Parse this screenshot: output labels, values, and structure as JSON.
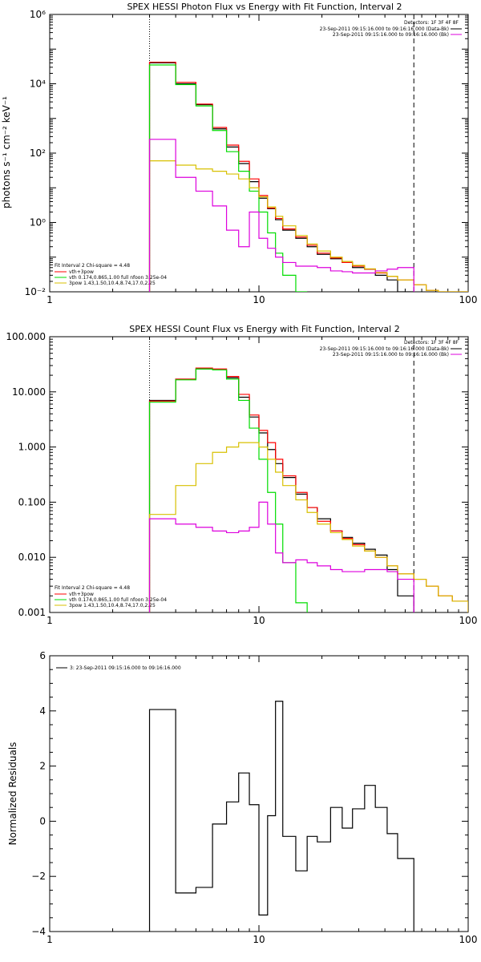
{
  "colors": {
    "black": "#000000",
    "red": "#ff0000",
    "green": "#00dd00",
    "yellow": "#d8c000",
    "magenta": "#dd00dd"
  },
  "chart_data": [
    {
      "id": "photon",
      "type": "line",
      "title": "SPEX HESSI Photon Flux vs Energy with Fit Function, Interval 2",
      "xlabel": "",
      "ylabel": "photons s⁻¹ cm⁻² keV⁻¹",
      "xscale": "log",
      "yscale": "log",
      "xlim": [
        1,
        100
      ],
      "ylim": [
        0.01,
        1000000
      ],
      "x_ticks": [
        1,
        10,
        100
      ],
      "x_tick_labels": [
        "1",
        "10",
        "100"
      ],
      "y_ticks": [
        0.01,
        1,
        100,
        10000,
        1000000
      ],
      "y_tick_labels": [
        "10⁻²",
        "10⁰",
        "10²",
        "10⁴",
        "10⁶"
      ],
      "vlines": [
        {
          "x": 3.0,
          "style": "dotted"
        },
        {
          "x": 55.0,
          "style": "dashed"
        }
      ],
      "legend_right": {
        "header": "Detectors: 1F 3F 4F 8F",
        "entries": [
          {
            "text": "23-Sep-2011 09:15:16.000 to 09:16:16.000 (Data-Bk)",
            "color_key": "black"
          },
          {
            "text": "23-Sep-2011 09:15:16.000 to 09:16:16.000 (Bk)",
            "color_key": "magenta"
          }
        ]
      },
      "legend_left": {
        "header": "Fit Interval 2   Chi-square = 4.48",
        "entries": [
          {
            "text": "vth+3pow",
            "color_key": "red"
          },
          {
            "text": "vth 0.174,0.865,1.00  full nfoon 3.25e-04",
            "color_key": "green"
          },
          {
            "text": "3pow 1.43,1.50,10.4,8.74,17.0,2.25",
            "color_key": "yellow"
          }
        ]
      },
      "edges": [
        3,
        4,
        5,
        6,
        7,
        8,
        9,
        10,
        11,
        12,
        13,
        15,
        17,
        19,
        22,
        25,
        28,
        32,
        36,
        41,
        46,
        55,
        63,
        72,
        84,
        100
      ],
      "series": [
        {
          "name": "Data-Bk",
          "color_key": "black",
          "values": [
            40000,
            10000,
            2500,
            500,
            150,
            50,
            15,
            5,
            2.5,
            1.2,
            0.6,
            0.35,
            0.2,
            0.12,
            0.09,
            0.07,
            0.05,
            0.045,
            0.03,
            0.022,
            0.003
          ]
        },
        {
          "name": "vth+3pow",
          "color_key": "red",
          "values": [
            42000,
            11000,
            2600,
            550,
            170,
            58,
            18,
            6,
            2.6,
            1.3,
            0.65,
            0.38,
            0.22,
            0.13,
            0.095,
            0.07,
            0.055,
            0.045,
            0.035,
            0.028,
            0.022,
            0.016,
            0.011,
            0.008,
            0.006
          ]
        },
        {
          "name": "vth",
          "color_key": "green",
          "values": [
            35000,
            9500,
            2300,
            450,
            110,
            30,
            8,
            2,
            0.5,
            0.13,
            0.03,
            0.005
          ]
        },
        {
          "name": "3pow",
          "color_key": "yellow",
          "values": [
            60,
            45,
            35,
            30,
            25,
            18,
            10,
            5.5,
            2.8,
            1.5,
            0.8,
            0.42,
            0.24,
            0.15,
            0.1,
            0.075,
            0.058,
            0.046,
            0.036,
            0.028,
            0.022,
            0.016,
            0.011,
            0.008,
            0.006
          ]
        },
        {
          "name": "Bk",
          "color_key": "magenta",
          "values": [
            250,
            20,
            8,
            3,
            0.6,
            0.2,
            2.0,
            0.35,
            0.18,
            0.1,
            0.07,
            0.055,
            0.055,
            0.05,
            0.04,
            0.038,
            0.035,
            0.035,
            0.04,
            0.045,
            0.05
          ]
        }
      ]
    },
    {
      "id": "count",
      "type": "line",
      "title": "SPEX HESSI Count Flux vs Energy with Fit Function, Interval 2",
      "xlabel": "",
      "ylabel": "",
      "xscale": "log",
      "yscale": "log",
      "xlim": [
        1,
        100
      ],
      "ylim": [
        0.001,
        100
      ],
      "x_ticks": [
        1,
        10,
        100
      ],
      "x_tick_labels": [
        "1",
        "10",
        "100"
      ],
      "y_ticks": [
        0.001,
        0.01,
        0.1,
        1,
        10,
        100
      ],
      "y_tick_labels": [
        "0.001",
        "0.010",
        "0.100",
        "1.000",
        "10.000",
        "100.000"
      ],
      "vlines": [
        {
          "x": 3.0,
          "style": "dotted"
        },
        {
          "x": 55.0,
          "style": "dashed"
        }
      ],
      "legend_right": {
        "header": "Detectors: 1F 3F 4F 8F",
        "entries": [
          {
            "text": "23-Sep-2011 09:15:16.000 to 09:16:16.000 (Data-Bk)",
            "color_key": "black"
          },
          {
            "text": "23-Sep-2011 09:15:16.000 to 09:16:16.000 (Bk)",
            "color_key": "magenta"
          }
        ]
      },
      "legend_left": {
        "header": "Fit Interval 2   Chi-square = 4.48",
        "entries": [
          {
            "text": "vth+3pow",
            "color_key": "red"
          },
          {
            "text": "vth 0.174,0.865,1.00  full nfoon 3.25e-04",
            "color_key": "green"
          },
          {
            "text": "3pow 1.43,1.50,10.4,8.74,17.0,2.25",
            "color_key": "yellow"
          }
        ]
      },
      "edges": [
        3,
        4,
        5,
        6,
        7,
        8,
        9,
        10,
        11,
        12,
        13,
        15,
        17,
        19,
        22,
        25,
        28,
        32,
        36,
        41,
        46,
        55,
        63,
        72,
        84,
        100
      ],
      "series": [
        {
          "name": "Data-Bk",
          "color_key": "black",
          "values": [
            7.0,
            17.0,
            26.0,
            25.0,
            18.0,
            8.0,
            3.5,
            1.8,
            0.9,
            0.5,
            0.28,
            0.14,
            0.08,
            0.05,
            0.03,
            0.023,
            0.018,
            0.014,
            0.011,
            0.006,
            0.002
          ]
        },
        {
          "name": "vth+3pow",
          "color_key": "red",
          "values": [
            6.8,
            17.0,
            27.0,
            26.0,
            19.0,
            9.0,
            3.8,
            2.0,
            1.2,
            0.6,
            0.3,
            0.15,
            0.08,
            0.045,
            0.03,
            0.022,
            0.017,
            0.013,
            0.01,
            0.007,
            0.005,
            0.004,
            0.003,
            0.002,
            0.0016
          ]
        },
        {
          "name": "vth",
          "color_key": "green",
          "values": [
            6.5,
            16.5,
            26.0,
            25.0,
            17.0,
            7.0,
            2.2,
            0.6,
            0.15,
            0.04,
            0.008,
            0.0015
          ]
        },
        {
          "name": "3pow",
          "color_key": "yellow",
          "values": [
            0.06,
            0.2,
            0.5,
            0.8,
            1.0,
            1.2,
            1.2,
            1.0,
            0.6,
            0.35,
            0.2,
            0.11,
            0.065,
            0.04,
            0.028,
            0.021,
            0.016,
            0.013,
            0.01,
            0.007,
            0.005,
            0.004,
            0.003,
            0.002,
            0.0016
          ]
        },
        {
          "name": "Bk",
          "color_key": "magenta",
          "values": [
            0.05,
            0.04,
            0.035,
            0.03,
            0.028,
            0.03,
            0.035,
            0.1,
            0.04,
            0.012,
            0.008,
            0.009,
            0.008,
            0.007,
            0.006,
            0.0055,
            0.0055,
            0.006,
            0.006,
            0.0055,
            0.004
          ]
        }
      ]
    },
    {
      "id": "residuals",
      "type": "line",
      "title": "",
      "xlabel": "",
      "ylabel": "Normalized  Residuals",
      "xscale": "log",
      "yscale": "linear",
      "xlim": [
        1,
        100
      ],
      "ylim": [
        -4,
        6
      ],
      "x_ticks": [
        1,
        10,
        100
      ],
      "x_tick_labels": [
        "1",
        "10",
        "100"
      ],
      "y_ticks": [
        -4,
        -2,
        0,
        2,
        4,
        6
      ],
      "y_tick_labels": [
        "−4",
        "−2",
        "0",
        "2",
        "4",
        "6"
      ],
      "legend_right": null,
      "legend_left": null,
      "legend_top_left": {
        "entries": [
          {
            "text": "3: 23-Sep-2011 09:15:16.000 to 09:16:16.000",
            "color_key": "black"
          }
        ]
      },
      "edges": [
        3,
        4,
        5,
        6,
        7,
        8,
        9,
        10,
        11,
        12,
        13,
        15,
        17,
        19,
        22,
        25,
        28,
        32,
        36,
        41,
        46,
        55
      ],
      "series": [
        {
          "name": "Residuals",
          "color_key": "black",
          "values": [
            4.05,
            -2.6,
            -2.4,
            -0.1,
            0.7,
            1.75,
            0.6,
            -3.4,
            0.2,
            4.35,
            -0.55,
            -1.8,
            -0.55,
            -0.75,
            0.5,
            -0.25,
            0.45,
            1.3,
            0.5,
            -0.45,
            -1.35
          ]
        }
      ]
    }
  ]
}
